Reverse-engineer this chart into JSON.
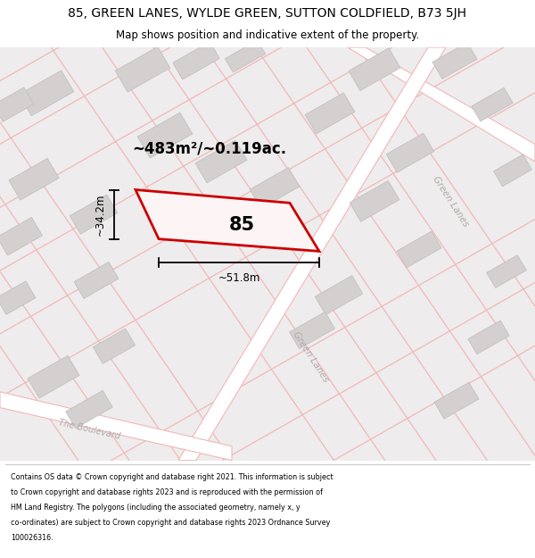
{
  "title_line1": "85, GREEN LANES, WYLDE GREEN, SUTTON COLDFIELD, B73 5JH",
  "title_line2": "Map shows position and indicative extent of the property.",
  "area_text": "~483m²/~0.119ac.",
  "label_85": "85",
  "dim_height": "~34.2m",
  "dim_width": "~51.8m",
  "footer_lines": [
    "Contains OS data © Crown copyright and database right 2021. This information is subject",
    "to Crown copyright and database rights 2023 and is reproduced with the permission of",
    "HM Land Registry. The polygons (including the associated geometry, namely x, y",
    "co-ordinates) are subject to Crown copyright and database rights 2023 Ordnance Survey",
    "100026316."
  ],
  "map_bg": "#eeecec",
  "street_color": "#f2b8b8",
  "building_color": "#d4d0d0",
  "plot_edge_color": "#cc0000",
  "plot_fill_color": "#fdf5f5",
  "dim_color": "#111111",
  "street_label_color": "#b0aaaa",
  "road_fill_color": "#f8f4f4"
}
